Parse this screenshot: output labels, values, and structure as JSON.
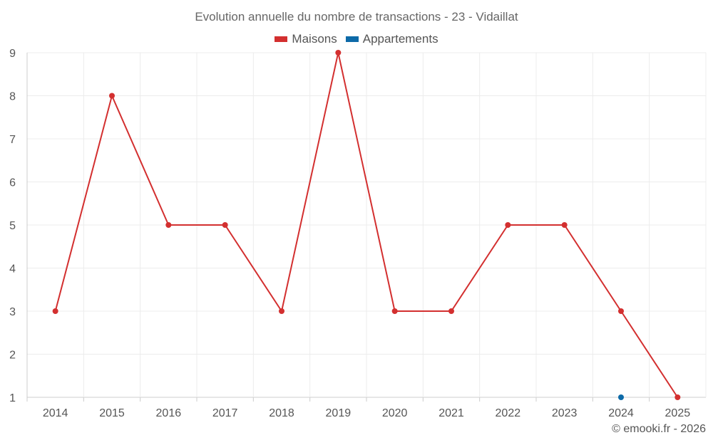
{
  "chart_data": {
    "type": "line",
    "title": "Evolution annuelle du nombre de transactions - 23 - Vidaillat",
    "categories": [
      "2014",
      "2015",
      "2016",
      "2017",
      "2018",
      "2019",
      "2020",
      "2021",
      "2022",
      "2023",
      "2024",
      "2025"
    ],
    "y_ticks": [
      "1",
      "2",
      "3",
      "4",
      "5",
      "6",
      "7",
      "8",
      "9"
    ],
    "ylim": [
      1,
      9
    ],
    "grid": true,
    "legend_position": "top-center",
    "series": [
      {
        "name": "Maisons",
        "color": "#d32f2f",
        "values": [
          3,
          8,
          5,
          5,
          3,
          9,
          3,
          3,
          5,
          5,
          3,
          1
        ]
      },
      {
        "name": "Appartements",
        "color": "#0d6aa8",
        "values": [
          null,
          null,
          null,
          null,
          null,
          null,
          null,
          null,
          null,
          null,
          1,
          null
        ]
      }
    ]
  },
  "footer": {
    "credit": "© emooki.fr - 2026"
  }
}
